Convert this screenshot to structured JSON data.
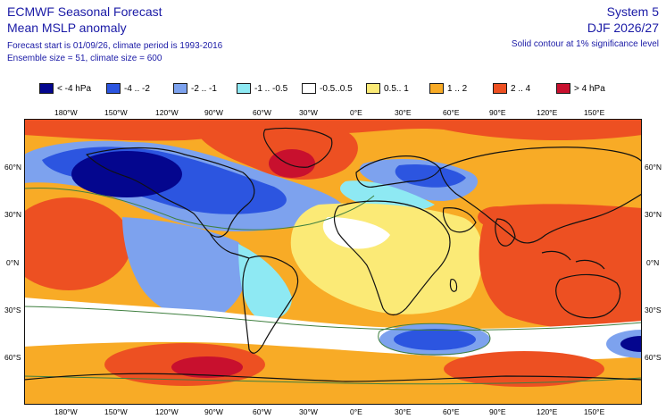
{
  "header": {
    "title": "ECMWF Seasonal Forecast",
    "subtitle": "Mean MSLP anomaly",
    "forecast_info": "Forecast start is 01/09/26, climate period is 1993-2016",
    "ensemble_info": "Ensemble size = 51, climate size = 600",
    "system": "System 5",
    "season": "DJF 2026/27",
    "contour_note": "Solid contour at 1% significance level"
  },
  "legend": [
    {
      "label": "< -4 hPa",
      "color": "#04068e"
    },
    {
      "label": "-4 .. -2",
      "color": "#2c55e0"
    },
    {
      "label": "-2 .. -1",
      "color": "#7da2ee"
    },
    {
      "label": "-1 .. -0.5",
      "color": "#8ee9f3"
    },
    {
      "label": "-0.5..0.5",
      "color": "#ffffff"
    },
    {
      "label": "0.5.. 1",
      "color": "#fbea76"
    },
    {
      "label": "1 .. 2",
      "color": "#f8ab26"
    },
    {
      "label": "2 .. 4",
      "color": "#ed5022"
    },
    {
      "label": "> 4 hPa",
      "color": "#c8102e"
    }
  ],
  "axes": {
    "lon_labels": [
      "180°W",
      "150°W",
      "120°W",
      "90°W",
      "60°W",
      "30°W",
      "0°E",
      "30°E",
      "60°E",
      "90°E",
      "120°E",
      "150°E"
    ],
    "lat_labels": [
      "60°N",
      "30°N",
      "0°N",
      "30°S",
      "60°S"
    ]
  },
  "colors": {
    "text": "#1a1aa6",
    "coast": "#111111",
    "contour": "#3f7f3f"
  }
}
